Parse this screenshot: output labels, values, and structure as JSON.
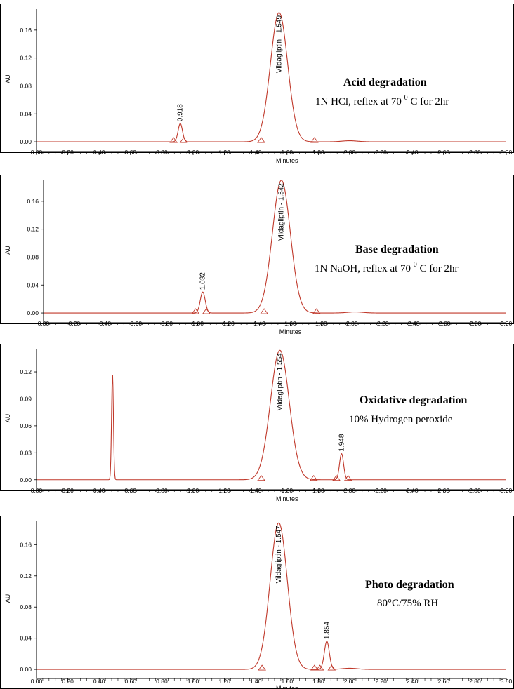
{
  "chart_data": [
    {
      "type": "line",
      "name_label": "Acid degradation",
      "title": "Acid degradation",
      "subtitle_parts": [
        "1N HCl, reflex at 70 ",
        "0",
        " C for 2hr"
      ],
      "xlabel": "Minutes",
      "ylabel": "AU",
      "xlim": [
        0,
        3
      ],
      "ylim": [
        -0.01,
        0.19
      ],
      "xticks": [
        "0.00",
        "0.20",
        "0.40",
        "0.60",
        "0.80",
        "1.00",
        "1.20",
        "1.40",
        "1.60",
        "1.80",
        "2.00",
        "2.20",
        "2.40",
        "2.60",
        "2.80",
        "3.00"
      ],
      "yticks": [
        {
          "value": 0.0,
          "label": "0.00"
        },
        {
          "value": 0.04,
          "label": "0.04"
        },
        {
          "value": 0.08,
          "label": "0.08"
        },
        {
          "value": 0.12,
          "label": "0.12"
        },
        {
          "value": 0.16,
          "label": "0.16"
        }
      ],
      "peaks": [
        {
          "rt": 0.918,
          "height": 0.026,
          "width": 0.014,
          "label": "0.918",
          "start": 0.875,
          "end": 0.94
        },
        {
          "rt": 1.549,
          "height": 0.185,
          "width": 0.055,
          "label": "Vildagliptin - 1.549",
          "start": 1.435,
          "end": 1.775
        }
      ],
      "bump": {
        "rt": 2.0,
        "height": 0.0015
      }
    },
    {
      "type": "line",
      "title": "Base degradation",
      "subtitle_parts": [
        "1N NaOH, reflex at 70 ",
        "0",
        " C for 2hr"
      ],
      "xlabel": "Minutes",
      "ylabel": "AU",
      "xlim": [
        0,
        3
      ],
      "ylim": [
        -0.01,
        0.19
      ],
      "xticks": [
        "0.00",
        "0.20",
        "0.40",
        "0.60",
        "0.80",
        "1.00",
        "1.20",
        "1.40",
        "1.60",
        "1.80",
        "2.00",
        "2.20",
        "2.40",
        "2.60",
        "2.80",
        "3.00"
      ],
      "yticks": [
        {
          "value": 0.0,
          "label": "0.00"
        },
        {
          "value": 0.04,
          "label": "0.04"
        },
        {
          "value": 0.08,
          "label": "0.08"
        },
        {
          "value": 0.12,
          "label": "0.12"
        },
        {
          "value": 0.16,
          "label": "0.16"
        }
      ],
      "peaks": [
        {
          "rt": 1.032,
          "height": 0.03,
          "width": 0.016,
          "label": "1.032",
          "start": 0.985,
          "end": 1.055
        },
        {
          "rt": 1.542,
          "height": 0.19,
          "width": 0.058,
          "label": "Vildagliptin - 1.542",
          "start": 1.43,
          "end": 1.77
        }
      ],
      "bump": {
        "rt": 2.02,
        "height": 0.0015
      }
    },
    {
      "type": "line",
      "title": "Oxidative degradation",
      "subtitle_parts": [
        "10%  Hydrogen peroxide"
      ],
      "xlabel": "Minutes",
      "ylabel": "AU",
      "xlim": [
        0,
        3
      ],
      "ylim": [
        -0.008,
        0.145
      ],
      "xticks": [
        "0.00",
        "0.20",
        "0.40",
        "0.60",
        "0.80",
        "1.00",
        "1.20",
        "1.40",
        "1.60",
        "1.80",
        "2.00",
        "2.20",
        "2.40",
        "2.60",
        "2.80",
        "3.00"
      ],
      "yticks": [
        {
          "value": 0.0,
          "label": "0.00"
        },
        {
          "value": 0.03,
          "label": "0.03"
        },
        {
          "value": 0.06,
          "label": "0.06"
        },
        {
          "value": 0.09,
          "label": "0.09"
        },
        {
          "value": 0.12,
          "label": "0.12"
        }
      ],
      "peaks": [
        {
          "rt": 0.485,
          "height": 0.118,
          "width": 0.006,
          "label": "",
          "start": null,
          "end": null
        },
        {
          "rt": 1.554,
          "height": 0.144,
          "width": 0.06,
          "label": "Vildagliptin - 1.554",
          "start": 1.435,
          "end": 1.77
        },
        {
          "rt": 1.948,
          "height": 0.029,
          "width": 0.013,
          "label": "1.948",
          "start": 1.915,
          "end": 1.99
        }
      ],
      "bump": null
    },
    {
      "type": "line",
      "title": "Photo degradation",
      "subtitle_parts": [
        "80°C/75% RH"
      ],
      "xlabel": "Minutes",
      "ylabel": "AU",
      "xlim": [
        0,
        3
      ],
      "ylim": [
        -0.008,
        0.19
      ],
      "xticks": [
        "0.00",
        "0.20",
        "0.40",
        "0.60",
        "0.80",
        "1.00",
        "1.20",
        "1.40",
        "1.60",
        "1.80",
        "2.00",
        "2.20",
        "2.40",
        "2.60",
        "2.80",
        "3.00"
      ],
      "yticks": [
        {
          "value": 0.0,
          "label": "0.00"
        },
        {
          "value": 0.04,
          "label": "0.04"
        },
        {
          "value": 0.08,
          "label": "0.08"
        },
        {
          "value": 0.12,
          "label": "0.12"
        },
        {
          "value": 0.16,
          "label": "0.16"
        }
      ],
      "peaks": [
        {
          "rt": 1.547,
          "height": 0.188,
          "width": 0.055,
          "label": "Vildagliptin - 1.547",
          "start": 1.44,
          "end": 1.775
        },
        {
          "rt": 1.854,
          "height": 0.036,
          "width": 0.016,
          "label": "1.854",
          "start": 1.81,
          "end": 1.885
        }
      ],
      "bump": {
        "rt": 2.0,
        "height": 0.0015
      }
    }
  ],
  "colors": {
    "trace": "#c0392b",
    "frame": "#000000",
    "baseline_marker": "#c0392b"
  }
}
